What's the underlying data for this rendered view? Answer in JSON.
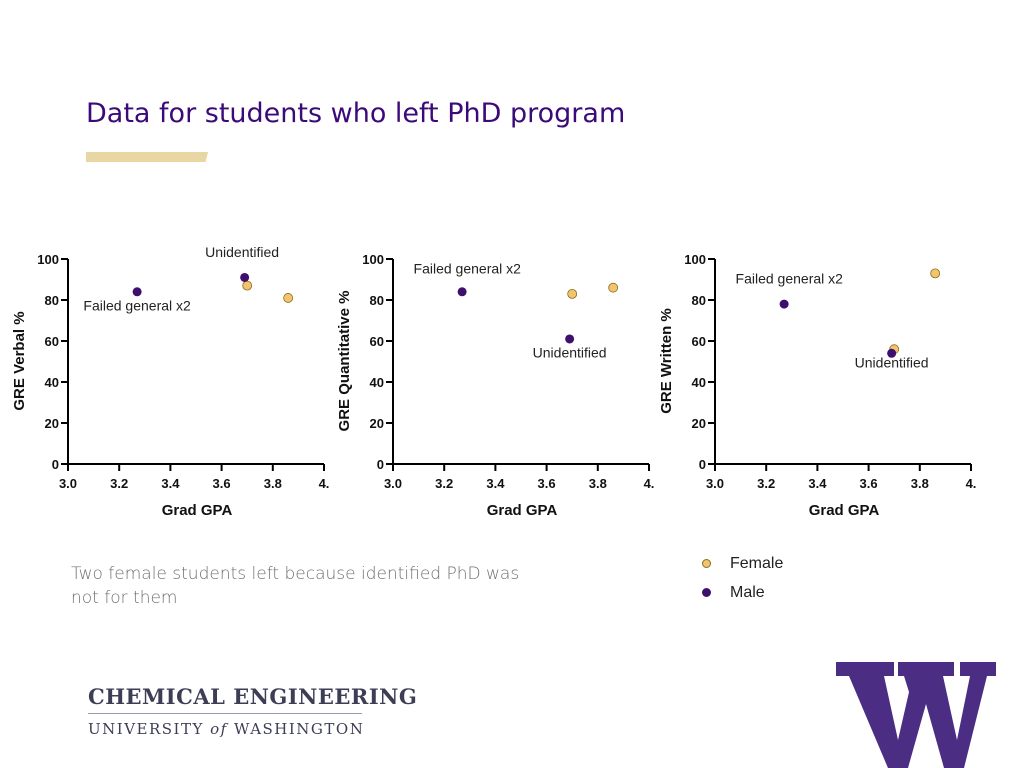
{
  "slide": {
    "title": "Data for students who left PhD program",
    "note": "Two female students left because identified PhD was not for them"
  },
  "colors": {
    "female": "#f2c46c",
    "male": "#3f0f6e",
    "accent_purple": "#3c0a78",
    "accent_gold": "#e8d6a4"
  },
  "legend": [
    {
      "label": "Female",
      "color": "#f2c46c"
    },
    {
      "label": "Male",
      "color": "#3f0f6e"
    }
  ],
  "footer": {
    "line1": "CHEMICAL ENGINEERING",
    "line2_a": "UNIVERSITY ",
    "line2_b": "of",
    "line2_c": " WASHINGTON"
  },
  "logo": {
    "icon": "uw-w-logo-icon",
    "color": "#4b2e83"
  },
  "chart_data": [
    {
      "type": "scatter",
      "title": "",
      "xlabel": "Grad GPA",
      "ylabel": "GRE Verbal %",
      "xlim": [
        3.0,
        4.0
      ],
      "ylim": [
        0,
        100
      ],
      "xticks": [
        "3.0",
        "3.2",
        "3.4",
        "3.6",
        "3.8",
        "4."
      ],
      "yticks": [
        "0",
        "20",
        "40",
        "60",
        "80",
        "100"
      ],
      "series": [
        {
          "name": "Female",
          "color": "#f2c46c",
          "points": [
            {
              "x": 3.7,
              "y": 87
            },
            {
              "x": 3.86,
              "y": 81
            }
          ]
        },
        {
          "name": "Male",
          "color": "#3f0f6e",
          "points": [
            {
              "x": 3.27,
              "y": 84
            },
            {
              "x": 3.69,
              "y": 91
            }
          ]
        }
      ],
      "annotations": [
        {
          "text": "Unidentified",
          "x": 3.68,
          "y": 101
        },
        {
          "text": "Failed general x2",
          "x": 3.27,
          "y": 75
        }
      ]
    },
    {
      "type": "scatter",
      "title": "",
      "xlabel": "Grad GPA",
      "ylabel": "GRE Quantitative %",
      "xlim": [
        3.0,
        4.0
      ],
      "ylim": [
        0,
        100
      ],
      "xticks": [
        "3.0",
        "3.2",
        "3.4",
        "3.6",
        "3.8",
        "4."
      ],
      "yticks": [
        "0",
        "20",
        "40",
        "60",
        "80",
        "100"
      ],
      "series": [
        {
          "name": "Female",
          "color": "#f2c46c",
          "points": [
            {
              "x": 3.7,
              "y": 83
            },
            {
              "x": 3.86,
              "y": 86
            }
          ]
        },
        {
          "name": "Male",
          "color": "#3f0f6e",
          "points": [
            {
              "x": 3.27,
              "y": 84
            },
            {
              "x": 3.69,
              "y": 61
            }
          ]
        }
      ],
      "annotations": [
        {
          "text": "Failed general x2",
          "x": 3.29,
          "y": 93
        },
        {
          "text": "Unidentified",
          "x": 3.69,
          "y": 52
        }
      ]
    },
    {
      "type": "scatter",
      "title": "",
      "xlabel": "Grad GPA",
      "ylabel": "GRE Written %",
      "xlim": [
        3.0,
        4.0
      ],
      "ylim": [
        0,
        100
      ],
      "xticks": [
        "3.0",
        "3.2",
        "3.4",
        "3.6",
        "3.8",
        "4."
      ],
      "yticks": [
        "0",
        "20",
        "40",
        "60",
        "80",
        "100"
      ],
      "series": [
        {
          "name": "Female",
          "color": "#f2c46c",
          "points": [
            {
              "x": 3.86,
              "y": 93
            },
            {
              "x": 3.7,
              "y": 56
            }
          ]
        },
        {
          "name": "Male",
          "color": "#3f0f6e",
          "points": [
            {
              "x": 3.27,
              "y": 78
            },
            {
              "x": 3.69,
              "y": 54
            }
          ]
        }
      ],
      "annotations": [
        {
          "text": "Failed general x2",
          "x": 3.29,
          "y": 88
        },
        {
          "text": "Unidentified",
          "x": 3.69,
          "y": 47
        }
      ]
    }
  ]
}
